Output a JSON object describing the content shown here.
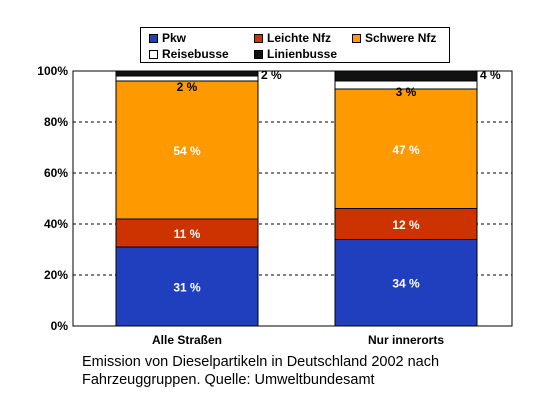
{
  "chart_data": {
    "type": "bar",
    "stacked": true,
    "categories": [
      "Alle Straßen",
      "Nur innerorts"
    ],
    "series": [
      {
        "name": "Pkw",
        "color": "#1F3FBF",
        "values": [
          31,
          34
        ],
        "labels": [
          "31 %",
          "34 %"
        ]
      },
      {
        "name": "Leichte Nfz",
        "color": "#CC3300",
        "values": [
          11,
          12
        ],
        "labels": [
          "11 %",
          "12 %"
        ]
      },
      {
        "name": "Schwere Nfz",
        "color": "#FF9900",
        "values": [
          54,
          47
        ],
        "labels": [
          "54 %",
          "47 %"
        ]
      },
      {
        "name": "Reisebusse",
        "color": "#FFFFFF",
        "values": [
          2,
          3
        ],
        "labels": [
          "2 %",
          "3 %"
        ]
      },
      {
        "name": "Linienbusse",
        "color": "#111111",
        "values": [
          2,
          4
        ],
        "labels": [
          "2 %",
          "4 %"
        ]
      }
    ],
    "yticks": [
      "0%",
      "20%",
      "40%",
      "60%",
      "80%",
      "100%"
    ],
    "ylim": [
      0,
      100
    ],
    "grid": true,
    "legend_position": "top"
  },
  "caption": {
    "line1": "Emission von Dieselpartikeln in Deutschland 2002 nach",
    "line2": "Fahrzeuggruppen. Quelle: Umweltbundesamt"
  }
}
